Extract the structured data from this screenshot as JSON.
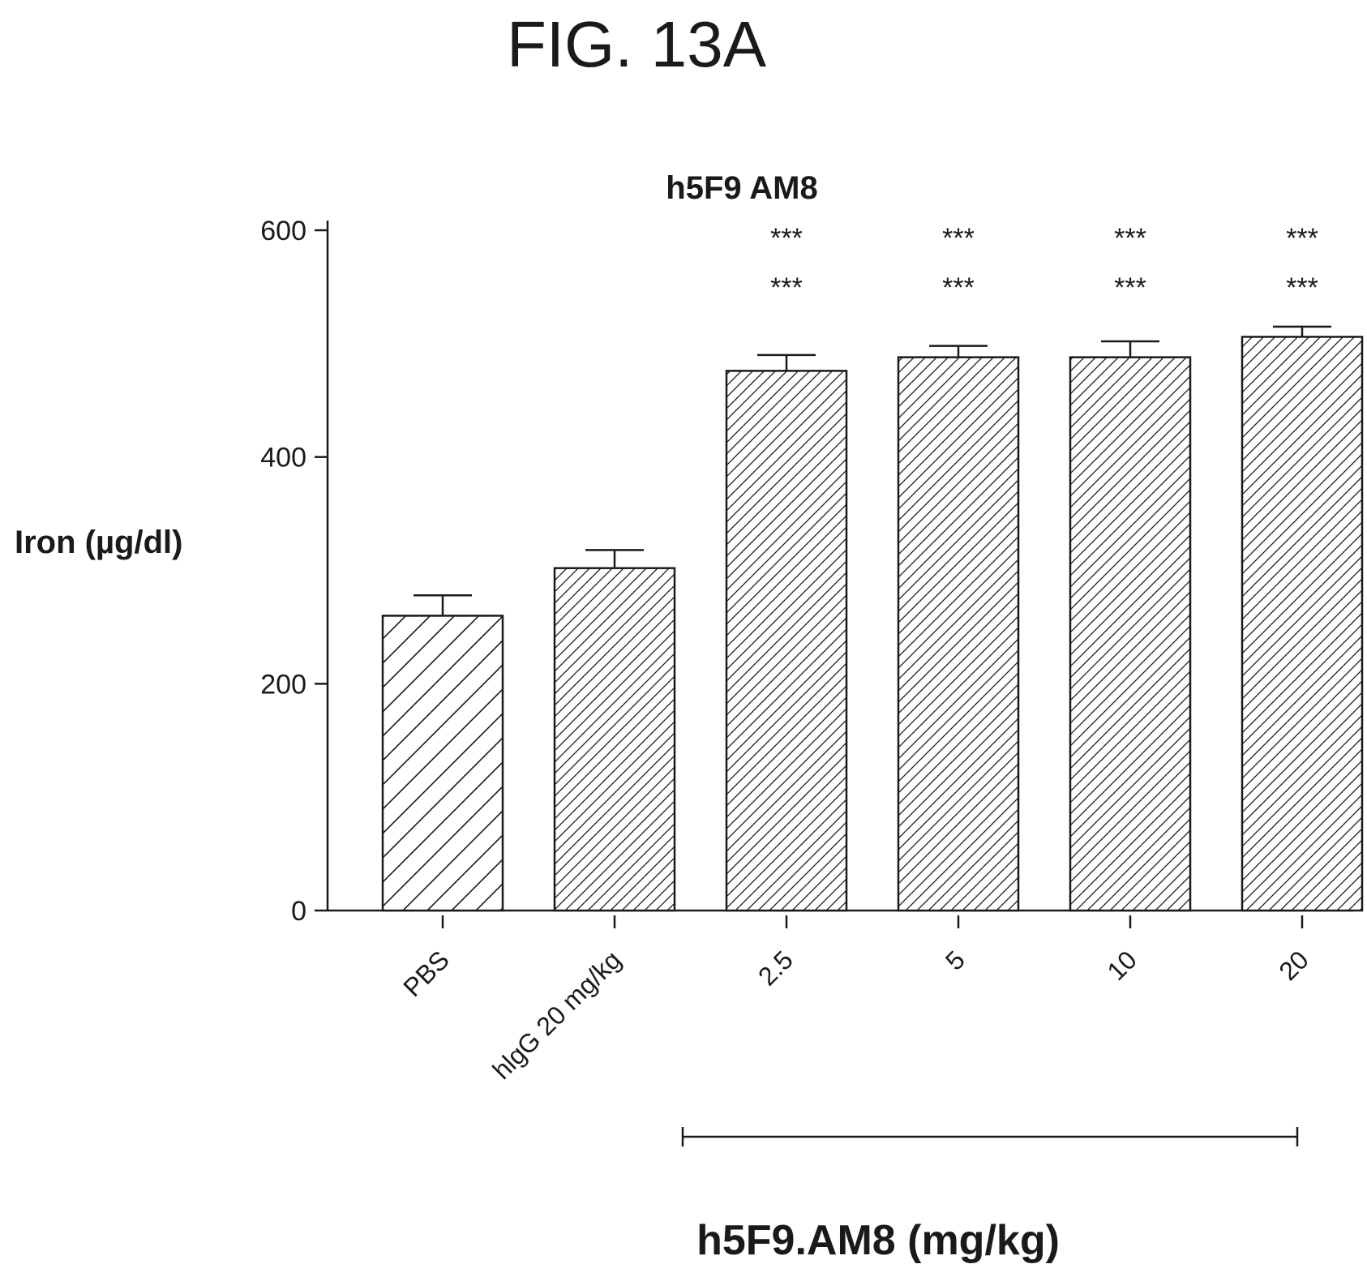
{
  "figure_label": "FIG. 13A",
  "chart_data": {
    "type": "bar",
    "title": "h5F9 AM8",
    "ylabel": "Iron (µg/dl)",
    "xlabel": "",
    "group_label": "h5F9.AM8 (mg/kg)",
    "group_span": [
      "2.5",
      "20"
    ],
    "categories": [
      "PBS",
      "hlgG 20 mg/kg",
      "2.5",
      "5",
      "10",
      "20"
    ],
    "values": [
      260,
      302,
      476,
      488,
      488,
      506
    ],
    "errors": [
      18,
      16,
      14,
      10,
      14,
      9
    ],
    "significance": [
      [
        "",
        ""
      ],
      [
        "",
        ""
      ],
      [
        "***",
        "***"
      ],
      [
        "***",
        "***"
      ],
      [
        "***",
        "***"
      ],
      [
        "***",
        "***"
      ]
    ],
    "ylim": [
      0,
      600
    ],
    "yticks": [
      0,
      200,
      400,
      600
    ],
    "ytick_labels": [
      "0",
      "200",
      "400",
      "600"
    ],
    "hatch": [
      "sparse",
      "dense",
      "dense",
      "dense",
      "dense",
      "dense"
    ],
    "grid": false,
    "legend": "none"
  }
}
